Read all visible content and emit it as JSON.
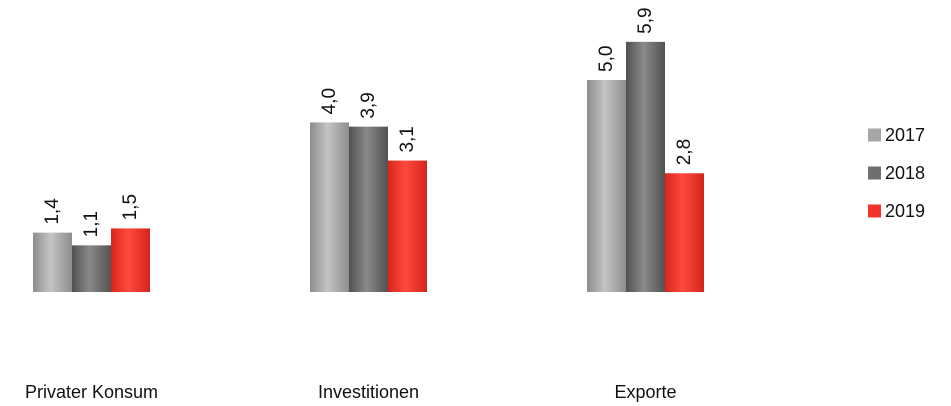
{
  "chart_data": {
    "type": "bar",
    "categories": [
      "Privater Konsum",
      "Investitionen",
      "Exporte"
    ],
    "series": [
      {
        "name": "2017",
        "values": [
          1.4,
          4.0,
          5.0
        ],
        "labels": [
          "1,4",
          "4,0",
          "5,0"
        ],
        "color": "#a6a6a6"
      },
      {
        "name": "2018",
        "values": [
          1.1,
          3.9,
          5.9
        ],
        "labels": [
          "1,1",
          "3,9",
          "5,9"
        ],
        "color": "#6f6f6f"
      },
      {
        "name": "2019",
        "values": [
          1.5,
          3.1,
          2.8
        ],
        "labels": [
          "1,5",
          "3,1",
          "2,8"
        ],
        "color": "#f0342a"
      }
    ],
    "ylim": [
      0,
      5.9
    ],
    "grid": false,
    "legend_position": "right",
    "value_label_orientation": "vertical"
  }
}
